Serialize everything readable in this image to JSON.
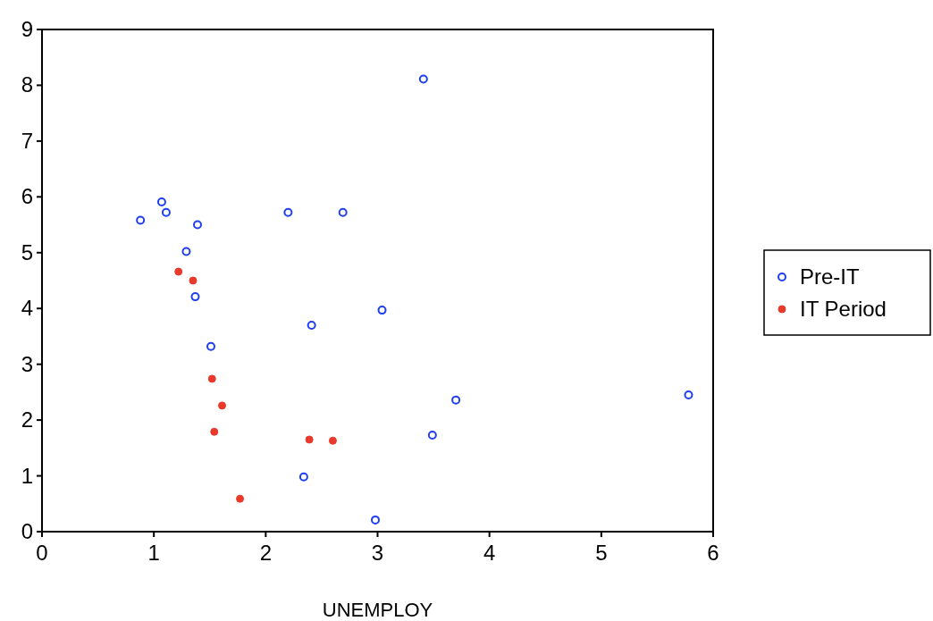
{
  "chart_data": {
    "type": "scatter",
    "xlabel": "UNEMPLOY",
    "xlim": [
      0,
      6
    ],
    "xticks": [
      0,
      1,
      2,
      3,
      4,
      5,
      6
    ],
    "ylim": [
      0,
      9
    ],
    "yticks": [
      0,
      1,
      2,
      3,
      4,
      5,
      6,
      7,
      8,
      9
    ],
    "grid": false,
    "legend": "right",
    "marker": "circle",
    "series": [
      {
        "name": "Pre-IT",
        "color": "#1f3ff0",
        "x": [
          0.88,
          1.07,
          1.11,
          1.39,
          1.29,
          1.37,
          1.51,
          2.2,
          2.69,
          3.41,
          2.41,
          3.04,
          3.7,
          3.49,
          2.34,
          2.98,
          5.78
        ],
        "values": [
          5.58,
          5.91,
          5.72,
          5.5,
          5.02,
          4.21,
          3.32,
          5.72,
          5.72,
          8.11,
          3.7,
          3.97,
          2.36,
          1.73,
          0.98,
          0.21,
          2.45
        ]
      },
      {
        "name": "IT Period",
        "color": "#e8392b",
        "x": [
          1.22,
          1.35,
          1.52,
          1.61,
          1.54,
          2.39,
          2.6,
          1.77
        ],
        "values": [
          4.66,
          4.5,
          2.74,
          2.26,
          1.79,
          1.65,
          1.63,
          0.59
        ]
      }
    ]
  }
}
